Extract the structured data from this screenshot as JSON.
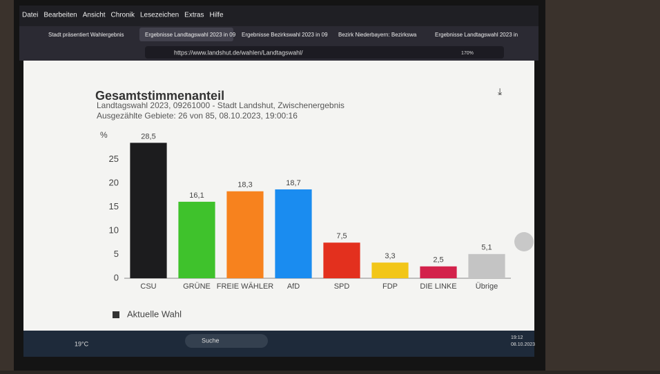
{
  "browser": {
    "menu": [
      "Datei",
      "Bearbeiten",
      "Ansicht",
      "Chronik",
      "Lesezeichen",
      "Extras",
      "Hilfe"
    ],
    "tabs": [
      "Stadt präsentiert Wahlergebnis",
      "Ergebnisse Landtagswahl 2023 in 09",
      "Ergebnisse Bezirkswahl 2023 in 09",
      "Bezirk Niederbayern: Bezirkswa",
      "Ergebnisse Landtagswahl 2023 in"
    ],
    "url": "https://www.landshut.de/wahlen/Landtagswahl/",
    "zoom": "170%"
  },
  "taskbar": {
    "search": "Suche",
    "weather": "19°C",
    "time": "19:12",
    "date": "08.10.2023"
  },
  "chart_data": {
    "type": "bar",
    "title": "Gesamtstimmenanteil",
    "subtitle": [
      "Landtagswahl 2023, 09261000 - Stadt Landshut, Zwischenergebnis",
      "Ausgezählte Gebiete: 26 von 85, 08.10.2023, 19:00:16"
    ],
    "y_label": "%",
    "categories": [
      "CSU",
      "GRÜNE",
      "FREIE WÄHLER",
      "AfD",
      "SPD",
      "FDP",
      "DIE LINKE",
      "Übrige"
    ],
    "values": [
      28.5,
      16.1,
      18.3,
      18.7,
      7.5,
      3.3,
      2.5,
      5.1
    ],
    "value_labels": [
      "28,5",
      "16,1",
      "18,3",
      "18,7",
      "7,5",
      "3,3",
      "2,5",
      "5,1"
    ],
    "colors": [
      "#1c1c1e",
      "#3fc22c",
      "#f7821e",
      "#1a8cf0",
      "#e3301e",
      "#f2c619",
      "#d3224b",
      "#c4c4c4"
    ],
    "ylim": [
      0,
      30
    ],
    "yticks": [
      0,
      5,
      10,
      15,
      20,
      25
    ],
    "grid": false,
    "legend": {
      "name": "Aktuelle Wahl",
      "color": "#333333"
    }
  }
}
